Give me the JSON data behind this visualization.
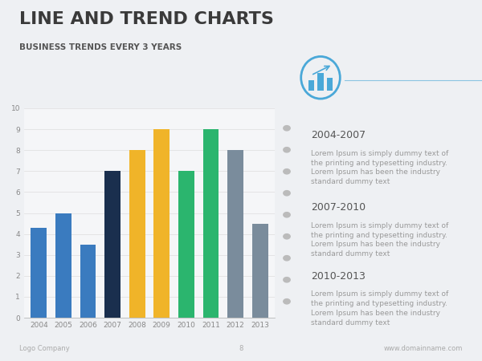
{
  "title": "LINE AND TREND CHARTS",
  "subtitle": "BUSINESS TRENDS EVERY 3 YEARS",
  "background_color": "#eef0f3",
  "title_color": "#3a3a3a",
  "subtitle_color": "#555555",
  "categories": [
    "2004",
    "2005",
    "2006",
    "2007",
    "2008",
    "2009",
    "2010",
    "2011",
    "2012",
    "2013"
  ],
  "values": [
    4.3,
    5.0,
    3.5,
    7.0,
    8.0,
    9.0,
    7.0,
    9.0,
    8.0,
    4.5
  ],
  "bar_colors": [
    "#3a7bbf",
    "#3a7bbf",
    "#3a7bbf",
    "#1a2f4e",
    "#f0b429",
    "#f0b429",
    "#2bb56e",
    "#2bb56e",
    "#7a8c9c",
    "#7a8c9c"
  ],
  "ylim": [
    0,
    10
  ],
  "yticks": [
    0,
    1,
    2,
    3,
    4,
    5,
    6,
    7,
    8,
    9,
    10
  ],
  "chart_bg": "#f5f6f8",
  "axis_color": "#aaaaaa",
  "tick_label_color": "#888888",
  "grid_color": "#dddddd",
  "sidebar_periods": [
    "2004-2007",
    "2007-2010",
    "2010-2013"
  ],
  "sidebar_texts": [
    "Lorem Ipsum is simply dummy text of\nthe printing and typesetting industry.\nLorem Ipsum has been the industry\nstandard dummy text",
    "Lorem Ipsum is simply dummy text of\nthe printing and typesetting industry.\nLorem Ipsum has been the industry\nstandard dummy text",
    "Lorem Ipsum is simply dummy text of\nthe printing and typesetting industry.\nLorem Ipsum has been the industry\nstandard dummy text"
  ],
  "sidebar_period_color": "#555555",
  "sidebar_text_color": "#999999",
  "icon_circle_color": "#4aa8d8",
  "dot_color": "#bbbbbb",
  "footer_left": "Logo Company",
  "footer_center": "8",
  "footer_right": "www.domainname.com",
  "footer_color": "#aaaaaa"
}
